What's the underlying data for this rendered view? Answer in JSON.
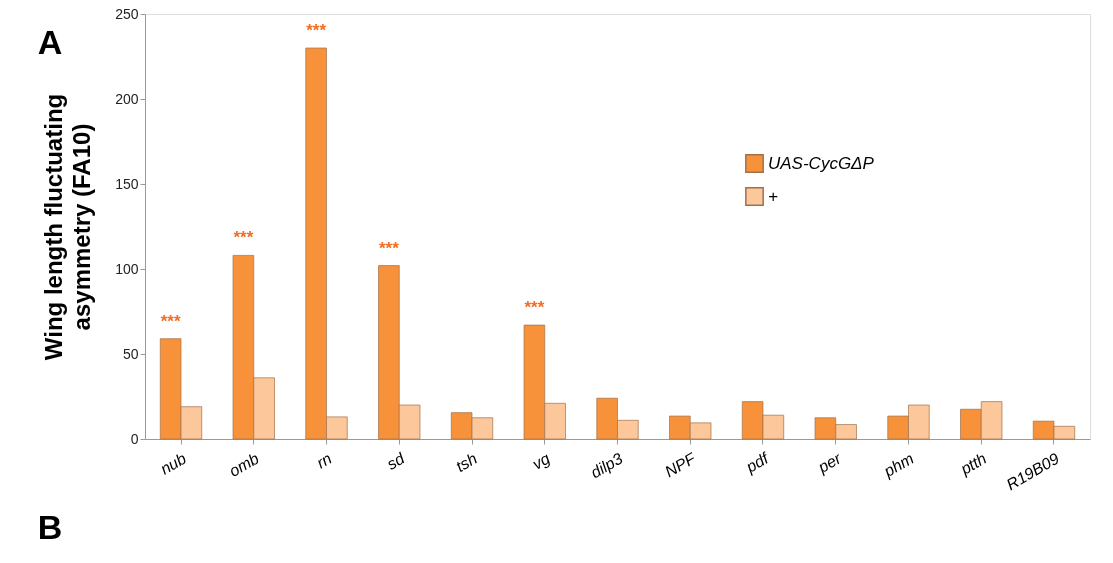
{
  "chart_data": {
    "type": "bar",
    "ylabel": "Wing length fluctuating asymmetry (FA10)",
    "categories": [
      "nub",
      "omb",
      "rn",
      "sd",
      "tsh",
      "vg",
      "dilp3",
      "NPF",
      "pdf",
      "per",
      "phm",
      "ptth",
      "R19B09"
    ],
    "series": [
      {
        "name": "UAS-CycGΔP",
        "color": "#f7923a",
        "values": [
          59,
          108,
          230,
          102,
          15.5,
          67,
          24,
          13.5,
          22,
          12.5,
          13.5,
          17.5,
          10.5
        ]
      },
      {
        "name": "+",
        "color": "#fcc79a",
        "values": [
          19,
          36,
          13,
          20,
          12.5,
          21,
          11,
          9.5,
          14,
          8.5,
          20,
          22,
          7.5
        ]
      }
    ],
    "ylim": [
      0,
      250
    ],
    "yticks": [
      0,
      50,
      100,
      150,
      200,
      250
    ],
    "grid": false,
    "legend": "right",
    "annotations": [
      {
        "text": "***",
        "x": "nub",
        "y": 59
      },
      {
        "text": "***",
        "x": "omb",
        "y": 108
      },
      {
        "text": "***",
        "x": "rn",
        "y": 230
      },
      {
        "text": "***",
        "x": "sd",
        "y": 102
      },
      {
        "text": "***",
        "x": "vg",
        "y": 67
      },
      "A",
      "B"
    ]
  }
}
